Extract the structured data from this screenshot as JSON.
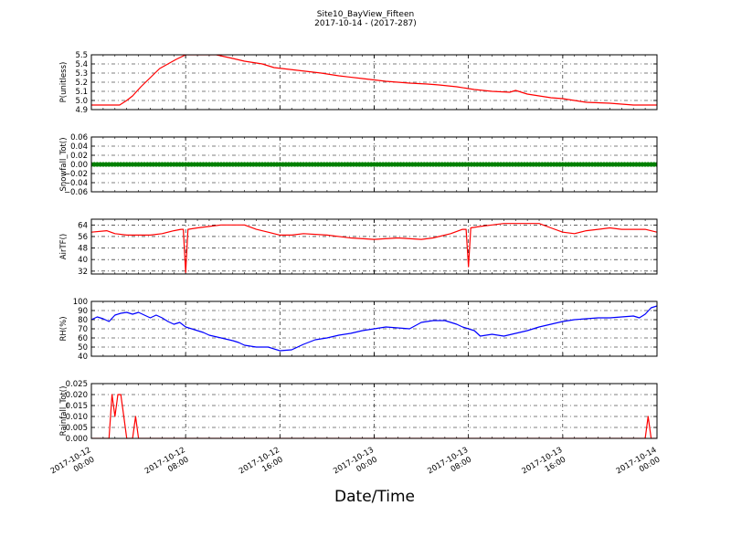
{
  "figure": {
    "title": "Site10_BayView_Fifteen",
    "subtitle": "2017-10-14 - (2017-287)",
    "xlabel": "Date/Time"
  },
  "chart_data": [
    {
      "type": "line",
      "ylabel": "P(unitless)",
      "color": "#ff0000",
      "ylim": [
        4.9,
        5.5
      ],
      "yticks": [
        "4.9",
        "5.0",
        "5.1",
        "5.2",
        "5.3",
        "5.4",
        "5.5"
      ],
      "yticks_values": [
        4.9,
        5.0,
        5.1,
        5.2,
        5.3,
        5.4,
        5.5
      ],
      "xlim": [
        0,
        48
      ],
      "grid": true,
      "x": [
        0,
        2.4,
        3.0,
        3.5,
        4.2,
        5.0,
        5.8,
        6.5,
        7.2,
        8.0,
        9.5,
        10.6,
        12.0,
        13.0,
        14.5,
        15.5,
        17.5,
        19.5,
        21.0,
        23.0,
        25.0,
        27.0,
        28.5,
        29.5,
        31.0,
        32.5,
        34.0,
        35.5,
        36.0,
        37.0,
        38.0,
        39.0,
        40.0,
        41.0,
        42.0,
        44.0,
        46.0,
        48.0
      ],
      "y": [
        4.95,
        4.95,
        5.0,
        5.05,
        5.15,
        5.25,
        5.35,
        5.4,
        5.45,
        5.5,
        5.5,
        5.5,
        5.46,
        5.43,
        5.4,
        5.36,
        5.33,
        5.3,
        5.27,
        5.24,
        5.21,
        5.19,
        5.18,
        5.17,
        5.15,
        5.12,
        5.1,
        5.09,
        5.11,
        5.07,
        5.05,
        5.03,
        5.02,
        5.0,
        4.98,
        4.97,
        4.95,
        4.95
      ]
    },
    {
      "type": "scatter",
      "ylabel": "Snowfall_Tot()",
      "color": "#008000",
      "ylim": [
        -0.06,
        0.06
      ],
      "yticks": [
        "−0.06",
        "−0.04",
        "−0.02",
        "0.00",
        "0.02",
        "0.04",
        "0.06"
      ],
      "yticks_values": [
        -0.06,
        -0.04,
        -0.02,
        0.0,
        0.02,
        0.04,
        0.06
      ],
      "xlim": [
        0,
        48
      ],
      "grid": true,
      "x_start": 0,
      "x_end": 48,
      "x_step": 0.25,
      "constant_value": 0.0
    },
    {
      "type": "line",
      "ylabel": "AirTF()",
      "color": "#ff0000",
      "ylim": [
        30,
        68
      ],
      "yticks": [
        "32",
        "40",
        "48",
        "56",
        "64"
      ],
      "yticks_values": [
        32,
        40,
        48,
        56,
        64
      ],
      "xlim": [
        0,
        48
      ],
      "grid": true,
      "x": [
        0,
        1.3,
        2.0,
        3.0,
        4.0,
        5.0,
        6.0,
        7.0,
        7.6,
        7.8,
        8.0,
        8.2,
        9.0,
        10.0,
        11.0,
        12.0,
        13.0,
        14.0,
        15.0,
        16.0,
        17.0,
        18.0,
        20.0,
        22.0,
        24.0,
        26.0,
        28.0,
        29.0,
        30.5,
        31.5,
        31.8,
        32.0,
        32.2,
        33.0,
        34.0,
        35.0,
        36.0,
        37.0,
        38.0,
        39.0,
        40.0,
        41.0,
        42.0,
        43.0,
        44.0,
        45.0,
        46.0,
        47.0,
        48.0
      ],
      "y": [
        59,
        60,
        58,
        57,
        57,
        57,
        58,
        60,
        61,
        61,
        31,
        61,
        62,
        63,
        64,
        64,
        64,
        61,
        59,
        57,
        57,
        58,
        57,
        55,
        54,
        55,
        54,
        55,
        58,
        61,
        61,
        35,
        62,
        63,
        64,
        65,
        65,
        65,
        65,
        62,
        59,
        58,
        60,
        61,
        62,
        61,
        61,
        61,
        59
      ]
    },
    {
      "type": "line",
      "ylabel": "RH(%)",
      "color": "#0000ff",
      "ylim": [
        40,
        100
      ],
      "yticks": [
        "40",
        "50",
        "60",
        "70",
        "80",
        "90",
        "100"
      ],
      "yticks_values": [
        40,
        50,
        60,
        70,
        80,
        90,
        100
      ],
      "xlim": [
        0,
        48
      ],
      "grid": true,
      "x": [
        0,
        0.5,
        1.0,
        1.5,
        2.0,
        2.5,
        3.0,
        3.5,
        4.0,
        4.5,
        5.0,
        5.5,
        6.0,
        6.5,
        7.0,
        7.5,
        8.0,
        9.0,
        9.5,
        10.0,
        11.0,
        12.0,
        12.5,
        13.0,
        14.0,
        15.0,
        16.0,
        17.0,
        18.0,
        19.0,
        20.0,
        21.0,
        22.0,
        23.0,
        24.0,
        25.0,
        26.0,
        27.0,
        28.0,
        29.0,
        30.0,
        31.0,
        31.5,
        32.0,
        32.5,
        33.0,
        34.0,
        35.0,
        36.0,
        37.0,
        38.0,
        39.0,
        40.0,
        41.0,
        42.0,
        43.0,
        44.0,
        45.0,
        46.0,
        46.5,
        47.0,
        47.5,
        48.0
      ],
      "y": [
        80,
        83,
        81,
        78,
        85,
        87,
        88,
        86,
        88,
        85,
        82,
        85,
        82,
        78,
        75,
        77,
        72,
        68,
        66,
        63,
        60,
        57,
        55,
        52,
        50,
        50,
        46,
        47,
        53,
        58,
        60,
        63,
        65,
        68,
        70,
        72,
        71,
        70,
        77,
        79,
        79,
        75,
        72,
        70,
        68,
        62,
        64,
        62,
        65,
        68,
        72,
        75,
        78,
        80,
        81,
        82,
        82,
        83,
        84,
        82,
        86,
        93,
        95
      ]
    },
    {
      "type": "line",
      "ylabel": "Rainfall_Tot()",
      "color": "#ff0000",
      "ylim": [
        0,
        0.025
      ],
      "yticks": [
        "0.000",
        "0.005",
        "0.010",
        "0.015",
        "0.020",
        "0.025"
      ],
      "yticks_values": [
        0,
        0.005,
        0.01,
        0.015,
        0.02,
        0.025
      ],
      "xlim": [
        0,
        48
      ],
      "grid": true,
      "x": [
        0,
        1.5,
        1.75,
        2.0,
        2.25,
        2.5,
        2.75,
        3.0,
        3.25,
        3.5,
        3.75,
        4.0,
        4.25,
        47.0,
        47.25,
        47.5,
        48.0
      ],
      "y": [
        0,
        0,
        0.02,
        0.01,
        0.02,
        0.02,
        0.01,
        0,
        0,
        0,
        0.01,
        0,
        0,
        0,
        0.01,
        0,
        0
      ]
    }
  ],
  "xaxis": {
    "ticks": [
      {
        "x": 0,
        "date": "2017-10-12",
        "time": "00:00"
      },
      {
        "x": 8,
        "date": "2017-10-12",
        "time": "08:00"
      },
      {
        "x": 16,
        "date": "2017-10-12",
        "time": "16:00"
      },
      {
        "x": 24,
        "date": "2017-10-13",
        "time": "00:00"
      },
      {
        "x": 32,
        "date": "2017-10-13",
        "time": "08:00"
      },
      {
        "x": 40,
        "date": "2017-10-13",
        "time": "16:00"
      },
      {
        "x": 48,
        "date": "2017-10-14",
        "time": "00:00"
      }
    ]
  }
}
